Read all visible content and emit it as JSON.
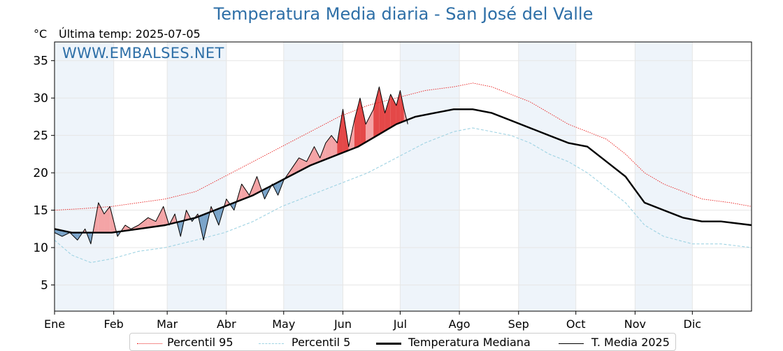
{
  "chart_data": {
    "type": "line",
    "title": "Temperatura Media diaria - San José del Valle",
    "ylabel": "°C",
    "last_temp_label": "Última temp: 2025-07-05",
    "watermark": "WWW.EMBALSES.NET",
    "ylim": [
      1.5,
      37.5
    ],
    "xlim": [
      1,
      366
    ],
    "yticks": [
      5,
      10,
      15,
      20,
      25,
      30,
      35
    ],
    "months": [
      "Ene",
      "Feb",
      "Mar",
      "Abr",
      "May",
      "Jun",
      "Jul",
      "Ago",
      "Sep",
      "Oct",
      "Nov",
      "Dic"
    ],
    "month_start_days": [
      1,
      32,
      60,
      91,
      121,
      152,
      182,
      213,
      244,
      274,
      305,
      335
    ],
    "grid": true,
    "legend_position": "bottom-center",
    "series": [
      {
        "name": "Percentil 95",
        "style": "dotted",
        "color": "#e8201f",
        "points": [
          [
            1,
            15.0
          ],
          [
            15,
            15.2
          ],
          [
            31,
            15.5
          ],
          [
            45,
            16.0
          ],
          [
            59,
            16.5
          ],
          [
            75,
            17.5
          ],
          [
            90,
            19.5
          ],
          [
            105,
            21.5
          ],
          [
            120,
            23.5
          ],
          [
            135,
            25.5
          ],
          [
            150,
            27.5
          ],
          [
            165,
            29.0
          ],
          [
            180,
            30.0
          ],
          [
            195,
            31.0
          ],
          [
            210,
            31.5
          ],
          [
            220,
            32.0
          ],
          [
            230,
            31.5
          ],
          [
            240,
            30.5
          ],
          [
            250,
            29.5
          ],
          [
            260,
            28.0
          ],
          [
            270,
            26.5
          ],
          [
            280,
            25.5
          ],
          [
            290,
            24.5
          ],
          [
            300,
            22.5
          ],
          [
            310,
            20.0
          ],
          [
            320,
            18.5
          ],
          [
            330,
            17.5
          ],
          [
            340,
            16.5
          ],
          [
            355,
            16.0
          ],
          [
            366,
            15.5
          ]
        ]
      },
      {
        "name": "Percentil 5",
        "style": "dashed",
        "color": "#9fd3e3",
        "points": [
          [
            1,
            11.0
          ],
          [
            10,
            9.0
          ],
          [
            20,
            8.0
          ],
          [
            31,
            8.5
          ],
          [
            45,
            9.5
          ],
          [
            59,
            10.0
          ],
          [
            75,
            11.0
          ],
          [
            90,
            12.0
          ],
          [
            105,
            13.5
          ],
          [
            120,
            15.5
          ],
          [
            135,
            17.0
          ],
          [
            150,
            18.5
          ],
          [
            165,
            20.0
          ],
          [
            180,
            22.0
          ],
          [
            195,
            24.0
          ],
          [
            210,
            25.5
          ],
          [
            220,
            26.0
          ],
          [
            230,
            25.5
          ],
          [
            240,
            25.0
          ],
          [
            250,
            24.0
          ],
          [
            260,
            22.5
          ],
          [
            270,
            21.5
          ],
          [
            280,
            20.0
          ],
          [
            290,
            18.0
          ],
          [
            300,
            16.0
          ],
          [
            310,
            13.0
          ],
          [
            320,
            11.5
          ],
          [
            335,
            10.5
          ],
          [
            350,
            10.5
          ],
          [
            366,
            10.0
          ]
        ]
      },
      {
        "name": "Temperatura Mediana",
        "style": "solid-thick",
        "color": "#000000",
        "points": [
          [
            1,
            12.5
          ],
          [
            10,
            12.0
          ],
          [
            20,
            12.0
          ],
          [
            31,
            12.0
          ],
          [
            45,
            12.5
          ],
          [
            59,
            13.0
          ],
          [
            75,
            14.0
          ],
          [
            90,
            15.5
          ],
          [
            105,
            17.0
          ],
          [
            120,
            19.0
          ],
          [
            135,
            21.0
          ],
          [
            150,
            22.5
          ],
          [
            160,
            23.5
          ],
          [
            170,
            25.0
          ],
          [
            180,
            26.5
          ],
          [
            190,
            27.5
          ],
          [
            200,
            28.0
          ],
          [
            210,
            28.5
          ],
          [
            220,
            28.5
          ],
          [
            230,
            28.0
          ],
          [
            240,
            27.0
          ],
          [
            250,
            26.0
          ],
          [
            260,
            25.0
          ],
          [
            270,
            24.0
          ],
          [
            280,
            23.5
          ],
          [
            290,
            21.5
          ],
          [
            300,
            19.5
          ],
          [
            310,
            16.0
          ],
          [
            320,
            15.0
          ],
          [
            330,
            14.0
          ],
          [
            340,
            13.5
          ],
          [
            350,
            13.5
          ],
          [
            366,
            13.0
          ]
        ]
      },
      {
        "name": "T. Media 2025",
        "style": "solid-thin",
        "color": "#000000",
        "points": [
          [
            1,
            12.0
          ],
          [
            5,
            11.5
          ],
          [
            9,
            12.0
          ],
          [
            13,
            11.0
          ],
          [
            17,
            12.5
          ],
          [
            20,
            10.5
          ],
          [
            24,
            16.0
          ],
          [
            27,
            14.5
          ],
          [
            30,
            15.5
          ],
          [
            34,
            11.5
          ],
          [
            38,
            13.0
          ],
          [
            41,
            12.5
          ],
          [
            45,
            13.0
          ],
          [
            50,
            14.0
          ],
          [
            54,
            13.5
          ],
          [
            58,
            15.5
          ],
          [
            61,
            13.0
          ],
          [
            64,
            14.5
          ],
          [
            67,
            11.5
          ],
          [
            70,
            15.0
          ],
          [
            73,
            13.5
          ],
          [
            76,
            14.5
          ],
          [
            79,
            11.0
          ],
          [
            83,
            15.5
          ],
          [
            87,
            13.0
          ],
          [
            91,
            16.5
          ],
          [
            95,
            15.0
          ],
          [
            99,
            18.5
          ],
          [
            103,
            17.0
          ],
          [
            107,
            19.5
          ],
          [
            111,
            16.5
          ],
          [
            115,
            18.5
          ],
          [
            118,
            17.0
          ],
          [
            121,
            19.0
          ],
          [
            125,
            20.5
          ],
          [
            129,
            22.0
          ],
          [
            133,
            21.5
          ],
          [
            137,
            23.5
          ],
          [
            140,
            22.0
          ],
          [
            143,
            24.0
          ],
          [
            146,
            25.0
          ],
          [
            149,
            24.0
          ],
          [
            152,
            28.5
          ],
          [
            155,
            23.5
          ],
          [
            158,
            27.0
          ],
          [
            161,
            30.0
          ],
          [
            164,
            26.5
          ],
          [
            168,
            28.5
          ],
          [
            171,
            31.5
          ],
          [
            174,
            28.0
          ],
          [
            177,
            30.5
          ],
          [
            180,
            29.0
          ],
          [
            182,
            31.0
          ],
          [
            184,
            28.5
          ],
          [
            186,
            26.5
          ]
        ]
      }
    ],
    "fill_above_color": "#f4a4a6",
    "fill_above_strong_color": "#e44848",
    "fill_below_color": "#7aa4c9"
  }
}
